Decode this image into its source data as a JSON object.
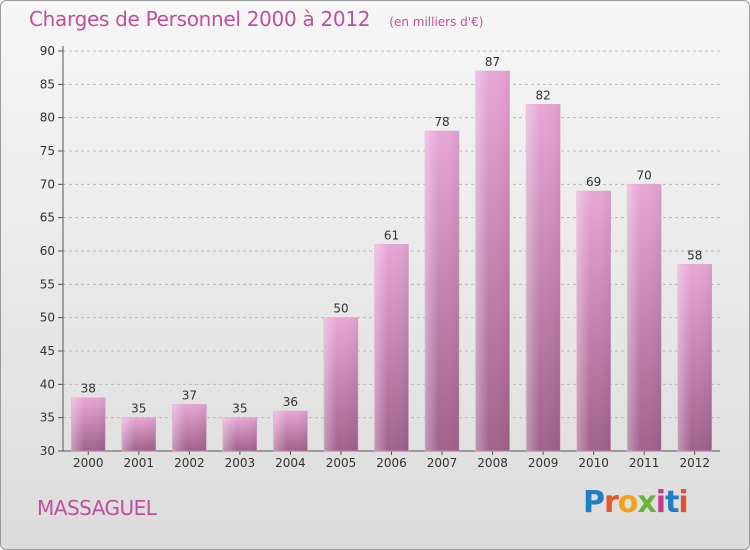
{
  "header": {
    "title": "Charges de Personnel 2000 à 2012",
    "unit": "(en milliers d'€)"
  },
  "footer": {
    "commune": "MASSAGUEL",
    "logo_text": "Proxiti",
    "logo_colors": [
      "#1f7ec4",
      "#e8552b",
      "#f2a21a",
      "#6bb43a",
      "#c63b8e",
      "#1f7ec4",
      "#e94e2d"
    ]
  },
  "colors": {
    "accent": "#c0509b",
    "bar_top": "#e8a7d6",
    "bar_bottom": "#a0628a"
  },
  "chart_data": {
    "type": "bar",
    "title": "Charges de Personnel 2000 à 2012",
    "ylabel": "(en milliers d'€)",
    "categories": [
      "2000",
      "2001",
      "2002",
      "2003",
      "2004",
      "2005",
      "2006",
      "2007",
      "2008",
      "2009",
      "2010",
      "2011",
      "2012"
    ],
    "values": [
      38,
      35,
      37,
      35,
      36,
      50,
      61,
      78,
      87,
      82,
      69,
      70,
      58
    ],
    "ylim": [
      30,
      90
    ],
    "yticks": [
      30,
      35,
      40,
      45,
      50,
      55,
      60,
      65,
      70,
      75,
      80,
      85,
      90
    ],
    "grid": true,
    "legend": "none"
  }
}
